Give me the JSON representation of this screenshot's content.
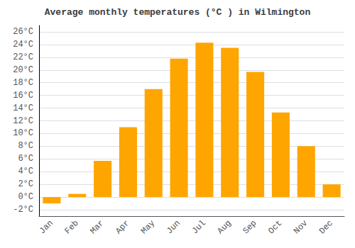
{
  "chart_data": {
    "type": "bar",
    "title": "Average monthly temperatures (°C ) in Wilmington",
    "categories": [
      "Jan",
      "Feb",
      "Mar",
      "Apr",
      "May",
      "Jun",
      "Jul",
      "Aug",
      "Sep",
      "Oct",
      "Nov",
      "Dec"
    ],
    "values": [
      -1.0,
      0.5,
      5.7,
      11.0,
      17.0,
      21.8,
      24.3,
      23.5,
      19.7,
      13.3,
      8.0,
      2.0
    ],
    "color": "#FFA500",
    "ylim": [
      -3,
      27
    ],
    "yticks": [
      {
        "value": -2,
        "label": "-2°C"
      },
      {
        "value": 0,
        "label": "0°C"
      },
      {
        "value": 2,
        "label": "2°C"
      },
      {
        "value": 4,
        "label": "4°C"
      },
      {
        "value": 6,
        "label": "6°C"
      },
      {
        "value": 8,
        "label": "8°C"
      },
      {
        "value": 10,
        "label": "10°C"
      },
      {
        "value": 12,
        "label": "12°C"
      },
      {
        "value": 14,
        "label": "14°C"
      },
      {
        "value": 16,
        "label": "16°C"
      },
      {
        "value": 18,
        "label": "18°C"
      },
      {
        "value": 20,
        "label": "20°C"
      },
      {
        "value": 22,
        "label": "22°C"
      },
      {
        "value": 24,
        "label": "24°C"
      },
      {
        "value": 26,
        "label": "26°C"
      }
    ],
    "grid": true
  }
}
